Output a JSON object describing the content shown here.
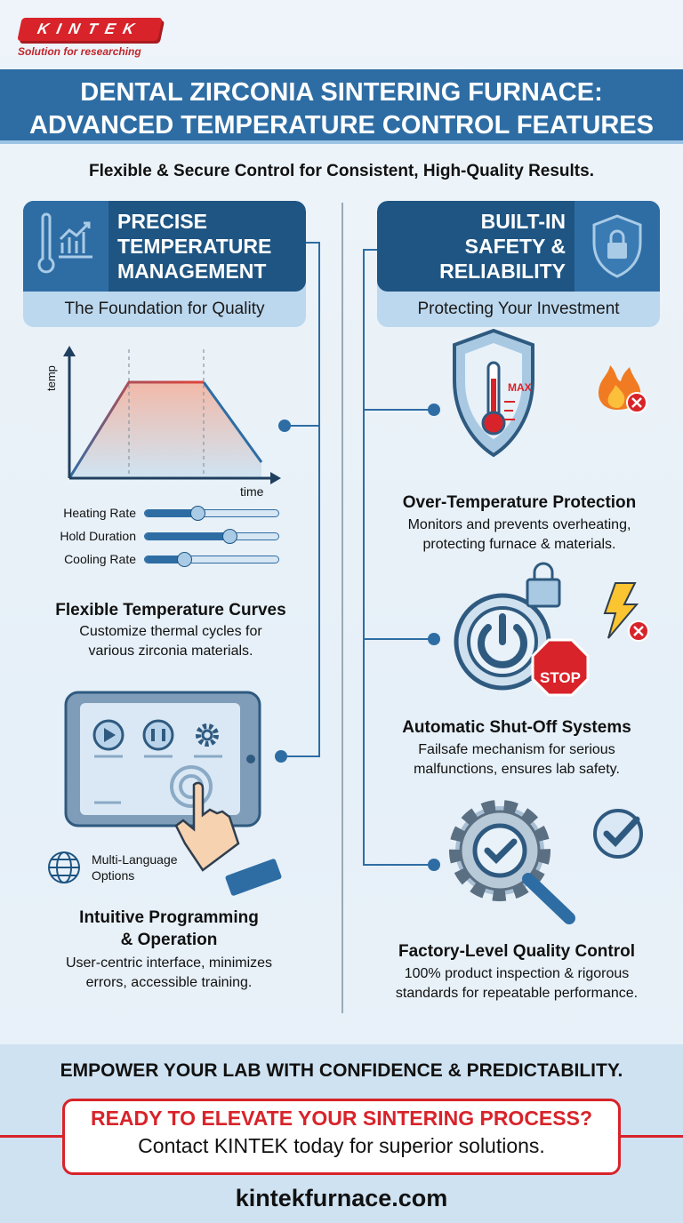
{
  "brand": {
    "logo_text": "KINTEK",
    "tagline": "Solution for researching"
  },
  "header": {
    "title_line1": "DENTAL ZIRCONIA SINTERING FURNACE:",
    "title_line2": "ADVANCED TEMPERATURE CONTROL FEATURES"
  },
  "subtitle": "Flexible & Secure Control for Consistent, High-Quality Results.",
  "left": {
    "heading": [
      "PRECISE",
      "TEMPERATURE",
      "MANAGEMENT"
    ],
    "tagline": "The Foundation for Quality",
    "chart": {
      "ylabel": "temp",
      "xlabel": "time"
    },
    "sliders": [
      {
        "label": "Heating Rate",
        "level": 0.4
      },
      {
        "label": "Hold Duration",
        "level": 0.64
      },
      {
        "label": "Cooling Rate",
        "level": 0.3
      }
    ],
    "features": [
      {
        "title": "Flexible Temperature Curves",
        "desc": [
          "Customize thermal cycles for",
          "various zirconia materials."
        ]
      },
      {
        "title": "Intuitive Programming",
        "title2": "& Operation",
        "desc": [
          "User-centric interface, minimizes",
          "errors, accessible training."
        ]
      }
    ],
    "language": [
      "Multi-Language",
      "Options"
    ]
  },
  "right": {
    "heading": [
      "BUILT-IN",
      "SAFETY &",
      "RELIABILITY"
    ],
    "tagline": "Protecting Your Investment",
    "max_label": "MAX",
    "stop_label": "STOP",
    "features": [
      {
        "title": "Over-Temperature Protection",
        "desc": [
          "Monitors and prevents overheating,",
          "protecting furnace & materials."
        ]
      },
      {
        "title": "Automatic Shut-Off Systems",
        "desc": [
          "Failsafe mechanism for serious",
          "malfunctions, ensures lab safety."
        ]
      },
      {
        "title": "Factory-Level Quality Control",
        "desc": [
          "100% product inspection & rigorous",
          "standards for repeatable performance."
        ]
      }
    ]
  },
  "footer": {
    "slogan": "EMPOWER YOUR LAB WITH CONFIDENCE & PREDICTABILITY.",
    "cta_title": "READY TO ELEVATE YOUR SINTERING PROCESS?",
    "cta_text": "Contact KINTEK today for superior solutions.",
    "website": "kintekfurnace.com"
  },
  "colors": {
    "primary": "#2e6da4",
    "dark": "#1f5582",
    "accent": "#d8232a"
  }
}
